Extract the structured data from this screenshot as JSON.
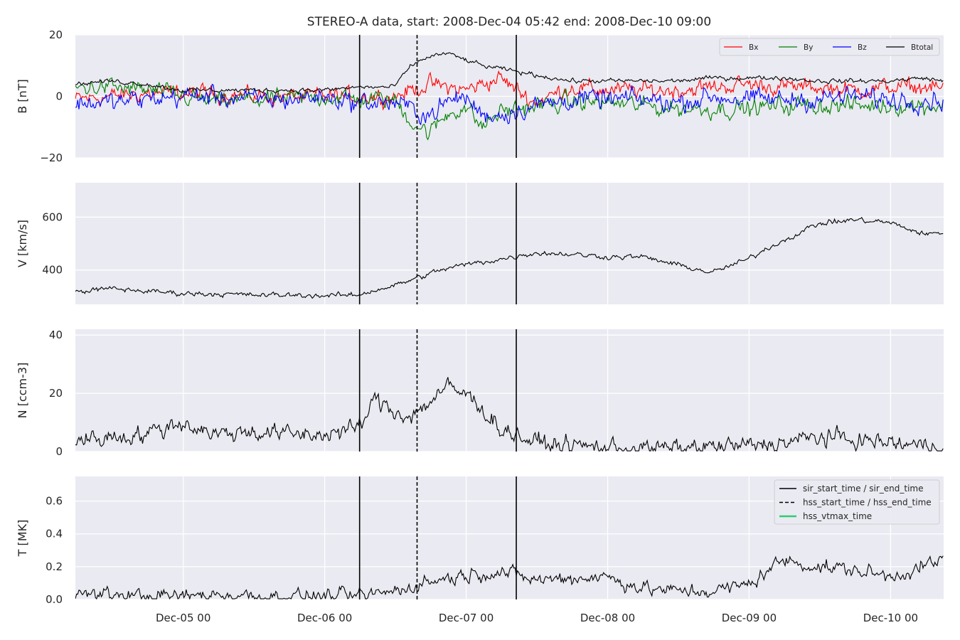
{
  "chart_data": {
    "type": "line",
    "title": "STEREO-A data, start: 2008-Dec-04 05:42  end: 2008-Dec-10 09:00",
    "x_range": [
      "2008-12-04 05:42",
      "2008-12-10 09:00"
    ],
    "x_tick_labels": [
      "Dec-05 00",
      "Dec-06 00",
      "Dec-07 00",
      "Dec-08 00",
      "Dec-09 00",
      "Dec-10 00"
    ],
    "x_ticks": [
      "2008-12-05 00:00",
      "2008-12-06 00:00",
      "2008-12-07 00:00",
      "2008-12-08 00:00",
      "2008-12-09 00:00",
      "2008-12-10 00:00"
    ],
    "grid": true,
    "x_unit": "hours",
    "event_markers": {
      "sir_start_time": "2008-12-06 05:55",
      "hss_start_time": "2008-12-06 15:40",
      "sir_end_time": "2008-12-07 08:30"
    },
    "panels": [
      {
        "id": "B",
        "ylabel": "B [nT]",
        "ylim": [
          -20,
          20
        ],
        "yticks": [
          -20,
          0,
          20
        ],
        "ytick_labels": [
          "−20",
          "0",
          "20"
        ],
        "legend": {
          "placement": "top-right",
          "entries": [
            "Bx",
            "By",
            "Bz",
            "Btotal"
          ]
        },
        "series": [
          {
            "name": "Bx",
            "color": "#ff0000",
            "x": [
              0,
              6,
              12,
              18,
              24,
              30,
              36,
              42,
              48,
              54,
              60,
              66,
              72,
              78,
              84,
              90,
              96,
              102,
              108,
              114,
              120,
              126,
              132,
              138,
              144,
              150
            ],
            "y": [
              -1,
              0,
              1,
              1,
              1,
              0,
              0,
              0,
              0,
              0,
              4,
              2,
              6,
              -2,
              3,
              2,
              2,
              2,
              3,
              4,
              3,
              3,
              2,
              3,
              3,
              2
            ],
            "noise": 2.2
          },
          {
            "name": "By",
            "color": "#008000",
            "x": [
              0,
              6,
              12,
              18,
              24,
              30,
              36,
              42,
              48,
              54,
              57,
              60,
              63,
              66,
              69,
              72,
              78,
              84,
              90,
              96,
              102,
              108,
              114,
              120,
              126,
              132,
              138,
              144,
              150
            ],
            "y": [
              3,
              3,
              2,
              0,
              -2,
              -1,
              -1,
              0,
              -1,
              -1,
              -8,
              -12,
              -6,
              -3,
              -10,
              -5,
              -3,
              -2,
              -2,
              -3,
              -4,
              -4,
              -4,
              -3,
              -3,
              -3,
              -3,
              -3,
              -3
            ],
            "noise": 2.4
          },
          {
            "name": "Bz",
            "color": "#0000ff",
            "x": [
              0,
              6,
              12,
              18,
              24,
              30,
              36,
              42,
              48,
              54,
              57,
              60,
              63,
              66,
              69,
              72,
              78,
              84,
              90,
              96,
              102,
              108,
              114,
              120,
              126,
              132,
              138,
              144,
              150
            ],
            "y": [
              -2,
              -2,
              -1,
              0,
              0,
              -1,
              -1,
              0,
              -2,
              -2,
              -4,
              -6,
              -2,
              0,
              -6,
              -6,
              -3,
              -1,
              -1,
              -1,
              -2,
              0,
              -1,
              -1,
              -1,
              0,
              -1,
              -1,
              -1
            ],
            "noise": 2.6
          },
          {
            "name": "Btotal",
            "color": "#000000",
            "x": [
              0,
              6,
              12,
              18,
              24,
              30,
              36,
              42,
              48,
              54,
              57,
              60,
              63,
              66,
              69,
              72,
              78,
              84,
              90,
              96,
              102,
              108,
              114,
              120,
              126,
              132,
              138,
              144,
              150
            ],
            "y": [
              4,
              5,
              4,
              2,
              2,
              2,
              2,
              2,
              3,
              3,
              10,
              13,
              14,
              12,
              10,
              9,
              7,
              5,
              5,
              5,
              5,
              6,
              6,
              6,
              5,
              5,
              5,
              6,
              4
            ],
            "noise": 0.6
          }
        ]
      },
      {
        "id": "V",
        "ylabel": "V [km/s]",
        "ylim": [
          270,
          730
        ],
        "yticks": [
          400,
          600
        ],
        "ytick_labels": [
          "400",
          "600"
        ],
        "series": [
          {
            "name": "V",
            "color": "#000000",
            "x": [
              0,
              6,
              12,
              18,
              24,
              30,
              36,
              42,
              48,
              50,
              54,
              58,
              62,
              66,
              72,
              78,
              84,
              90,
              96,
              102,
              108,
              114,
              118,
              120,
              126,
              132,
              138,
              144,
              150
            ],
            "y": [
              318,
              330,
              320,
              312,
              310,
              305,
              305,
              303,
              305,
              320,
              340,
              370,
              400,
              420,
              440,
              465,
              460,
              450,
              450,
              420,
              390,
              440,
              490,
              510,
              575,
              590,
              580,
              535,
              545
            ],
            "noise": 8
          }
        ]
      },
      {
        "id": "N",
        "ylabel": "N [ccm-3]",
        "ylim": [
          0,
          42
        ],
        "yticks": [
          0,
          20,
          40
        ],
        "ytick_labels": [
          "0",
          "20",
          "40"
        ],
        "series": [
          {
            "name": "N",
            "color": "#000000",
            "x": [
              0,
              6,
              12,
              18,
              24,
              30,
              36,
              42,
              48,
              51,
              54,
              57,
              60,
              63,
              66,
              69,
              72,
              78,
              84,
              90,
              96,
              102,
              108,
              114,
              120,
              126,
              132,
              138,
              144,
              150
            ],
            "y": [
              4,
              5,
              6,
              10,
              6,
              7,
              6,
              6,
              8,
              18,
              14,
              12,
              17,
              22,
              20,
              15,
              8,
              3,
              2,
              1.5,
              1,
              1,
              1.5,
              2,
              3,
              5,
              4,
              3,
              2,
              2
            ],
            "noise": 2.5
          }
        ]
      },
      {
        "id": "T",
        "ylabel": "T [MK]",
        "ylim": [
          0,
          0.75
        ],
        "yticks": [
          0.0,
          0.2,
          0.4,
          0.6
        ],
        "ytick_labels": [
          "0.0",
          "0.2",
          "0.4",
          "0.6"
        ],
        "legend": {
          "placement": "top-right",
          "entries": [
            "sir_start_time / sir_end_time",
            "hss_start_time / hss_end_time",
            "hss_vtmax_time"
          ],
          "colors": [
            "#000000",
            "#000000",
            "#2ecc71"
          ]
        },
        "series": [
          {
            "name": "T",
            "color": "#000000",
            "x": [
              0,
              6,
              12,
              18,
              24,
              30,
              36,
              42,
              48,
              54,
              60,
              66,
              72,
              78,
              84,
              90,
              96,
              102,
              108,
              114,
              120,
              126,
              132,
              138,
              144,
              150
            ],
            "y": [
              0.03,
              0.03,
              0.02,
              0.02,
              0.03,
              0.02,
              0.02,
              0.02,
              0.02,
              0.05,
              0.11,
              0.15,
              0.17,
              0.12,
              0.13,
              0.14,
              0.07,
              0.05,
              0.05,
              0.09,
              0.24,
              0.2,
              0.18,
              0.14,
              0.2,
              0.28
            ],
            "noise": 0.035
          }
        ]
      }
    ]
  }
}
